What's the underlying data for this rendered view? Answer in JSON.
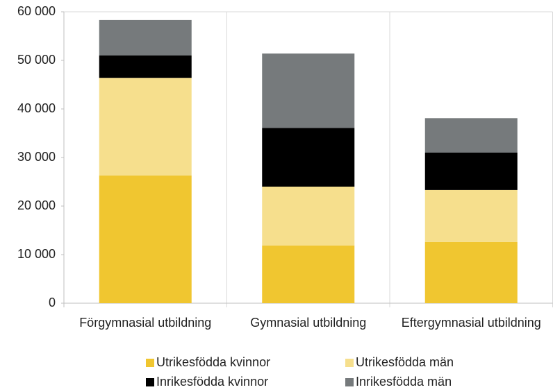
{
  "chart_data": {
    "type": "stacked_bar",
    "categories": [
      "Förgymnasial utbildning",
      "Gymnasial utbildning",
      "Eftergymnasial utbildning"
    ],
    "series": [
      {
        "name": "Utrikesfödda kvinnor",
        "color": "#f0c630",
        "values": [
          26300,
          11900,
          12600
        ]
      },
      {
        "name": "Utrikesfödda män",
        "color": "#f6df8d",
        "values": [
          20100,
          12100,
          10700
        ]
      },
      {
        "name": "Inrikesfödda kvinnor",
        "color": "#000000",
        "values": [
          4600,
          12100,
          7700
        ]
      },
      {
        "name": "Inrikesfödda män",
        "color": "#767a7c",
        "values": [
          7300,
          15300,
          7100
        ]
      }
    ],
    "ylim": [
      0,
      60000
    ],
    "yticks": [
      0,
      {
        "value": 10000,
        "label": "10 000"
      },
      {
        "value": 20000,
        "label": "20 000"
      },
      {
        "value": 30000,
        "label": "30 000"
      },
      {
        "value": 40000,
        "label": "40 000"
      },
      {
        "value": 50000,
        "label": "50 000"
      },
      {
        "value": 60000,
        "label": "60 000"
      }
    ],
    "legend": "bottom"
  }
}
